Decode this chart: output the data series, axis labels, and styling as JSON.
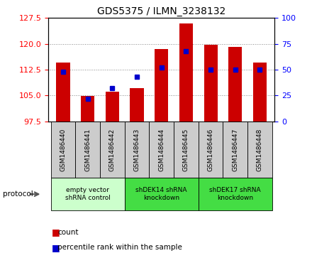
{
  "title": "GDS5375 / ILMN_3238132",
  "samples": [
    "GSM1486440",
    "GSM1486441",
    "GSM1486442",
    "GSM1486443",
    "GSM1486444",
    "GSM1486445",
    "GSM1486446",
    "GSM1486447",
    "GSM1486448"
  ],
  "counts": [
    114.5,
    104.8,
    106.2,
    107.2,
    118.5,
    126.0,
    119.8,
    119.2,
    114.5
  ],
  "percentiles": [
    48,
    22,
    32,
    43,
    52,
    68,
    50,
    50,
    50
  ],
  "ylim_left": [
    97.5,
    127.5
  ],
  "ylim_right": [
    0,
    100
  ],
  "yticks_left": [
    97.5,
    105,
    112.5,
    120,
    127.5
  ],
  "yticks_right": [
    0,
    25,
    50,
    75,
    100
  ],
  "bar_color": "#cc0000",
  "marker_color": "#0000cc",
  "bar_base": 97.5,
  "groups": [
    {
      "label": "empty vector\nshRNA control",
      "start": 0,
      "end": 3,
      "color": "#ccffcc"
    },
    {
      "label": "shDEK14 shRNA\nknockdown",
      "start": 3,
      "end": 6,
      "color": "#44dd44"
    },
    {
      "label": "shDEK17 shRNA\nknockdown",
      "start": 6,
      "end": 9,
      "color": "#44dd44"
    }
  ],
  "protocol_label": "protocol",
  "legend_count_label": "count",
  "legend_percentile_label": "percentile rank within the sample",
  "grid_color": "#888888",
  "sample_box_color": "#cccccc",
  "plot_bg": "#ffffff",
  "fig_bg": "#ffffff"
}
